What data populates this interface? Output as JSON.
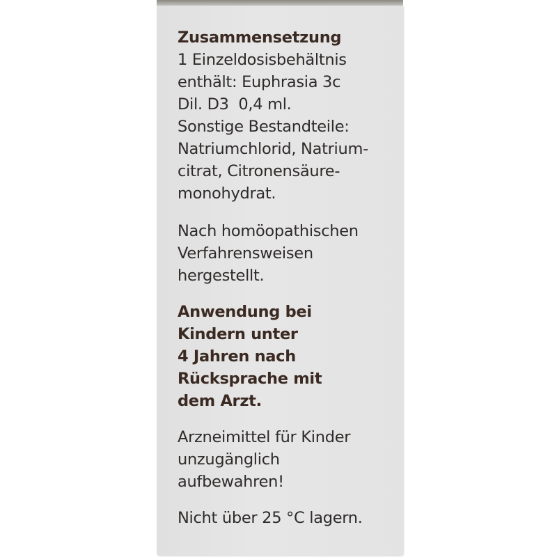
{
  "label": {
    "composition": {
      "heading": "Zusammensetzung",
      "lines": [
        "1 Einzeldosisbehältnis",
        "enthält: Euphrasia 3c",
        "Dil. D3  0,4 ml.",
        "Sonstige Bestandteile:",
        "Natriumchlorid, Natrium-",
        "citrat, Citronensäure-",
        "monohydrat."
      ]
    },
    "manufacturing": [
      "Nach homöopathischen",
      "Verfahrensweisen",
      "hergestellt."
    ],
    "children_warning": [
      "Anwendung bei",
      "Kindern unter",
      "4 Jahren nach",
      "Rücksprache mit",
      "dem Arzt."
    ],
    "storage_warning": [
      "Arzneimittel für Kinder",
      "unzugänglich",
      "aufbewahren!"
    ],
    "temperature": "Nicht über 25 °C lagern."
  }
}
